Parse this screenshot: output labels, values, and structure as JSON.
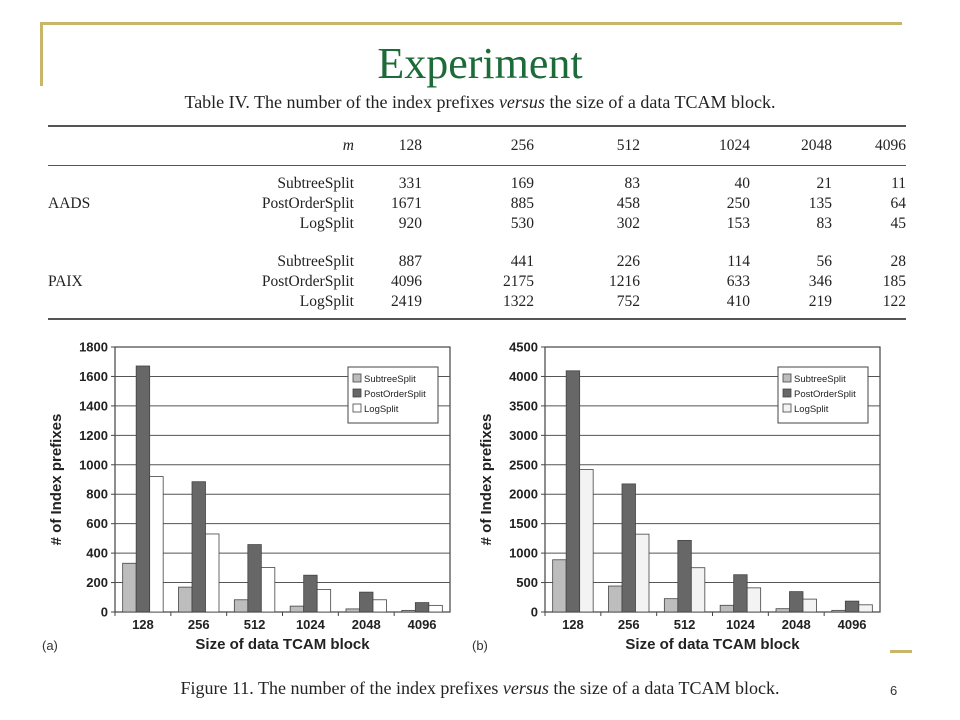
{
  "slide": {
    "title": "Experiment",
    "page_number": "6"
  },
  "table": {
    "caption_pre": "Table IV. The number of the index prefixes ",
    "caption_em": "versus",
    "caption_post": " the size of a data TCAM block.",
    "m_label": "m",
    "columns": [
      "128",
      "256",
      "512",
      "1024",
      "2048",
      "4096"
    ],
    "groups": [
      {
        "name": "AADS",
        "rows": [
          {
            "method": "SubtreeSplit",
            "values": [
              "331",
              "169",
              "83",
              "40",
              "21",
              "11"
            ]
          },
          {
            "method": "PostOrderSplit",
            "values": [
              "1671",
              "885",
              "458",
              "250",
              "135",
              "64"
            ]
          },
          {
            "method": "LogSplit",
            "values": [
              "920",
              "530",
              "302",
              "153",
              "83",
              "45"
            ]
          }
        ]
      },
      {
        "name": "PAIX",
        "rows": [
          {
            "method": "SubtreeSplit",
            "values": [
              "887",
              "441",
              "226",
              "114",
              "56",
              "28"
            ]
          },
          {
            "method": "PostOrderSplit",
            "values": [
              "4096",
              "2175",
              "1216",
              "633",
              "346",
              "185"
            ]
          },
          {
            "method": "LogSplit",
            "values": [
              "2419",
              "1322",
              "752",
              "410",
              "219",
              "122"
            ]
          }
        ]
      }
    ]
  },
  "figure": {
    "caption_pre": "Figure 11. The number of the index prefixes ",
    "caption_em": "versus",
    "caption_post": " the size of a data TCAM block."
  },
  "chart_data": [
    {
      "type": "bar",
      "panel_label": "(a)",
      "categories": [
        "128",
        "256",
        "512",
        "1024",
        "2048",
        "4096"
      ],
      "series": [
        {
          "name": "SubtreeSplit",
          "values": [
            331,
            169,
            83,
            40,
            21,
            11
          ],
          "color": "#bdbdbd"
        },
        {
          "name": "PostOrderSplit",
          "values": [
            1671,
            885,
            458,
            250,
            135,
            64
          ],
          "color": "#676767"
        },
        {
          "name": "LogSplit",
          "values": [
            920,
            530,
            302,
            153,
            83,
            45
          ],
          "color": "#ffffff"
        }
      ],
      "xlabel": "Size of data TCAM block",
      "ylabel": "# of Index prefixes",
      "ylim": [
        0,
        1800
      ],
      "yticks": [
        "0",
        "200",
        "400",
        "600",
        "800",
        "1000",
        "1200",
        "1400",
        "1600",
        "1800"
      ],
      "grid": true,
      "legend": "top-right"
    },
    {
      "type": "bar",
      "panel_label": "(b)",
      "categories": [
        "128",
        "256",
        "512",
        "1024",
        "2048",
        "4096"
      ],
      "series": [
        {
          "name": "SubtreeSplit",
          "values": [
            887,
            441,
            226,
            114,
            56,
            28
          ],
          "color": "#bdbdbd"
        },
        {
          "name": "PostOrderSplit",
          "values": [
            4096,
            2175,
            1216,
            633,
            346,
            185
          ],
          "color": "#676767"
        },
        {
          "name": "LogSplit",
          "values": [
            2419,
            1322,
            752,
            410,
            219,
            122
          ],
          "color": "#f3f3f3"
        }
      ],
      "xlabel": "Size of data TCAM block",
      "ylabel": "# of Index prefixes",
      "ylim": [
        0,
        4500
      ],
      "yticks": [
        "0",
        "500",
        "1000",
        "1500",
        "2000",
        "2500",
        "3000",
        "3500",
        "4000",
        "4500"
      ],
      "grid": true,
      "legend": "top-right"
    }
  ]
}
